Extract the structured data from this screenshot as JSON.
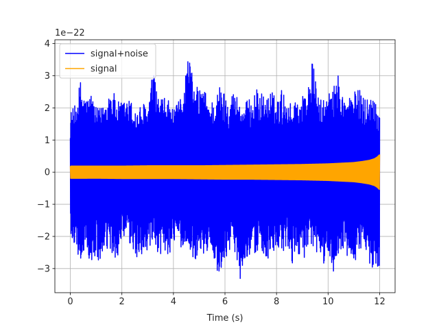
{
  "chart_data": {
    "type": "line",
    "title": "",
    "xlabel": "Time (s)",
    "ylabel": "",
    "y_offset_text": "1e−22",
    "xlim": [
      -0.6,
      12.6
    ],
    "ylim": [
      -3.75,
      4.12
    ],
    "x_ticks": [
      0,
      2,
      4,
      6,
      8,
      10,
      12
    ],
    "x_tick_labels": [
      "0",
      "2",
      "4",
      "6",
      "8",
      "10",
      "12"
    ],
    "y_ticks": [
      -3,
      -2,
      -1,
      0,
      1,
      2,
      3,
      4
    ],
    "y_tick_labels": [
      "−3",
      "−2",
      "−1",
      "0",
      "1",
      "2",
      "3",
      "4"
    ],
    "grid": true,
    "legend_position": "upper-left",
    "series": [
      {
        "name": "signal+noise",
        "color": "#0000ff",
        "envelope": {
          "x": [
            0,
            0.2,
            0.4,
            0.6,
            0.8,
            1.0,
            1.2,
            1.4,
            1.6,
            1.8,
            2.0,
            2.2,
            2.4,
            2.6,
            2.8,
            3.0,
            3.2,
            3.4,
            3.6,
            3.8,
            4.0,
            4.2,
            4.4,
            4.6,
            4.8,
            5.0,
            5.2,
            5.4,
            5.6,
            5.8,
            6.0,
            6.2,
            6.4,
            6.6,
            6.8,
            7.0,
            7.2,
            7.4,
            7.6,
            7.8,
            8.0,
            8.2,
            8.4,
            8.6,
            8.8,
            9.0,
            9.2,
            9.4,
            9.6,
            9.8,
            10.0,
            10.2,
            10.4,
            10.6,
            10.8,
            11.0,
            11.2,
            11.4,
            11.6,
            11.8,
            12.0
          ],
          "upper": [
            1.9,
            2.1,
            2.9,
            2.3,
            2.5,
            2.0,
            2.0,
            2.4,
            2.7,
            2.2,
            2.2,
            2.3,
            2.2,
            1.9,
            2.2,
            2.0,
            3.2,
            2.4,
            2.3,
            2.3,
            1.9,
            2.2,
            2.8,
            3.8,
            2.6,
            2.7,
            2.6,
            2.2,
            2.3,
            2.7,
            2.5,
            2.4,
            2.6,
            2.1,
            2.2,
            2.3,
            2.6,
            2.5,
            2.3,
            2.6,
            2.2,
            2.6,
            2.3,
            2.1,
            2.4,
            2.4,
            2.6,
            3.5,
            2.4,
            2.2,
            2.5,
            2.6,
            3.1,
            2.3,
            2.4,
            2.5,
            2.6,
            2.4,
            2.3,
            2.5,
            1.9
          ],
          "lower": [
            -2.3,
            -2.2,
            -3.0,
            -2.2,
            -3.1,
            -2.6,
            -3.1,
            -2.4,
            -2.8,
            -2.7,
            -2.3,
            -2.1,
            -2.5,
            -2.8,
            -2.5,
            -2.6,
            -2.4,
            -2.7,
            -2.5,
            -2.6,
            -2.3,
            -2.4,
            -2.3,
            -2.4,
            -2.8,
            -2.5,
            -2.6,
            -2.4,
            -2.8,
            -3.35,
            -2.7,
            -2.4,
            -2.5,
            -3.35,
            -2.6,
            -2.7,
            -2.6,
            -2.4,
            -2.7,
            -2.8,
            -2.5,
            -2.6,
            -2.4,
            -2.9,
            -2.5,
            -2.7,
            -2.6,
            -2.5,
            -2.6,
            -2.9,
            -2.7,
            -3.1,
            -2.6,
            -2.5,
            -2.8,
            -3.05,
            -2.4,
            -2.6,
            -2.9,
            -3.0,
            -2.9
          ]
        }
      },
      {
        "name": "signal",
        "color": "#ffa500",
        "envelope": {
          "x": [
            0,
            1,
            2,
            3,
            4,
            5,
            6,
            7,
            8,
            9,
            10,
            10.5,
            11,
            11.3,
            11.6,
            11.8,
            11.9,
            12.0
          ],
          "upper": [
            0.19,
            0.19,
            0.19,
            0.2,
            0.2,
            0.2,
            0.21,
            0.22,
            0.23,
            0.24,
            0.26,
            0.28,
            0.3,
            0.33,
            0.37,
            0.42,
            0.47,
            0.55
          ],
          "lower": [
            -0.19,
            -0.19,
            -0.2,
            -0.2,
            -0.2,
            -0.21,
            -0.22,
            -0.22,
            -0.23,
            -0.24,
            -0.26,
            -0.28,
            -0.3,
            -0.33,
            -0.37,
            -0.42,
            -0.47,
            -0.55
          ]
        }
      }
    ]
  }
}
